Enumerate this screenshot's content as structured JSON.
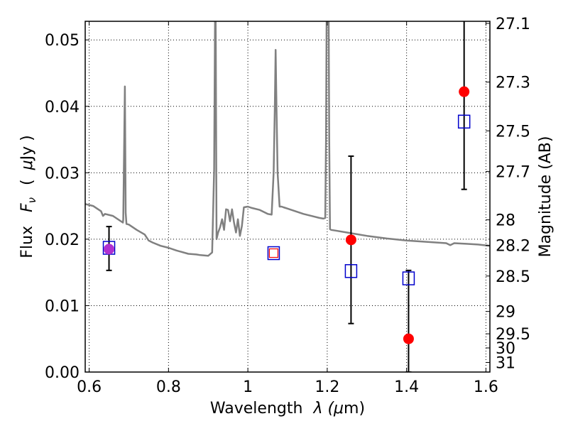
{
  "chart_data": {
    "type": "scatter",
    "title": "",
    "xlabel_parts": [
      "Wavelength",
      "λ (",
      "μ",
      "m)"
    ],
    "ylabel_parts": [
      "Flux",
      "F",
      "ν",
      "(",
      "μ",
      "Jy )"
    ],
    "y2label": "Magnitude (AB)",
    "xlim": [
      0.59,
      1.61
    ],
    "ylim": [
      0.0,
      0.0528
    ],
    "x_ticks": [
      0.6,
      0.8,
      1.0,
      1.2,
      1.4,
      1.6
    ],
    "x_tick_labels": [
      "0.6",
      "0.8",
      "1",
      "1.2",
      "1.4",
      "1.6"
    ],
    "y_ticks": [
      0.0,
      0.01,
      0.02,
      0.03,
      0.04,
      0.05
    ],
    "y_tick_labels": [
      "0.00",
      "0.01",
      "0.02",
      "0.03",
      "0.04",
      "0.05"
    ],
    "y2_ticks": [
      27.1,
      27.3,
      27.5,
      27.7,
      28,
      28.2,
      28.5,
      29,
      29.5,
      30,
      31
    ],
    "y2_tick_labels": [
      "27.1",
      "27.3",
      "27.5",
      "27.7",
      "28",
      "28.2",
      "28.5",
      "29",
      "29.5",
      "30",
      "31"
    ],
    "grid": true,
    "colors": {
      "spectrum": "#808080",
      "observed": "#ff0000",
      "model": "#0000cc",
      "overlap": "#b030d0",
      "errorbar": "#000000"
    },
    "series": [
      {
        "kind": "line",
        "x": [
          0.59,
          0.61,
          0.63,
          0.635,
          0.64,
          0.66,
          0.67,
          0.685,
          0.686,
          0.69,
          0.692,
          0.694,
          0.7,
          0.72,
          0.74,
          0.75,
          0.76,
          0.78,
          0.8,
          0.82,
          0.85,
          0.87,
          0.88,
          0.9,
          0.91,
          0.915,
          0.917,
          0.918,
          0.919,
          0.921,
          0.923,
          0.925,
          0.93,
          0.935,
          0.94,
          0.945,
          0.95,
          0.955,
          0.96,
          0.965,
          0.97,
          0.975,
          0.98,
          0.985,
          0.99,
          1.0,
          1.01,
          1.03,
          1.05,
          1.06,
          1.065,
          1.068,
          1.07,
          1.072,
          1.075,
          1.08,
          1.085,
          1.09,
          1.1,
          1.12,
          1.14,
          1.16,
          1.18,
          1.19,
          1.195,
          1.197,
          1.199,
          1.201,
          1.203,
          1.205,
          1.207,
          1.21,
          1.22,
          1.25,
          1.3,
          1.35,
          1.4,
          1.45,
          1.5,
          1.51,
          1.52,
          1.55,
          1.58,
          1.61
        ],
        "y": [
          0.0253,
          0.025,
          0.0242,
          0.0235,
          0.0238,
          0.0235,
          0.0231,
          0.0225,
          0.023,
          0.043,
          0.024,
          0.0223,
          0.0222,
          0.0214,
          0.0207,
          0.0198,
          0.0195,
          0.019,
          0.0187,
          0.0183,
          0.0178,
          0.0177,
          0.0176,
          0.0175,
          0.018,
          0.0305,
          0.05,
          0.06,
          0.05,
          0.02,
          0.0205,
          0.021,
          0.0218,
          0.023,
          0.0214,
          0.0245,
          0.0244,
          0.0227,
          0.0245,
          0.0225,
          0.021,
          0.023,
          0.0205,
          0.022,
          0.0248,
          0.0249,
          0.0247,
          0.0244,
          0.0238,
          0.0237,
          0.03,
          0.04,
          0.0485,
          0.04,
          0.03,
          0.0249,
          0.0249,
          0.0248,
          0.0246,
          0.0242,
          0.0238,
          0.0235,
          0.0232,
          0.0231,
          0.0232,
          0.035,
          0.06,
          0.06,
          0.06,
          0.035,
          0.0215,
          0.0214,
          0.0213,
          0.021,
          0.0205,
          0.0201,
          0.0198,
          0.0196,
          0.0194,
          0.0191,
          0.0194,
          0.0193,
          0.0192,
          0.019
        ]
      },
      {
        "kind": "points-filled",
        "x": [
          0.65,
          1.26,
          1.405,
          1.545
        ],
        "y": [
          0.0185,
          0.0199,
          0.005,
          0.0422
        ],
        "yerr_low": [
          0.0032,
          0.0126,
          0.005,
          0.0147
        ],
        "yerr_high": [
          0.0034,
          0.0126,
          0.0103,
          0.0147
        ]
      },
      {
        "kind": "points-open-square",
        "x": [
          0.65,
          1.065,
          1.26,
          1.405,
          1.545
        ],
        "y": [
          0.0187,
          0.0179,
          0.0152,
          0.0141,
          0.0377
        ]
      }
    ]
  }
}
